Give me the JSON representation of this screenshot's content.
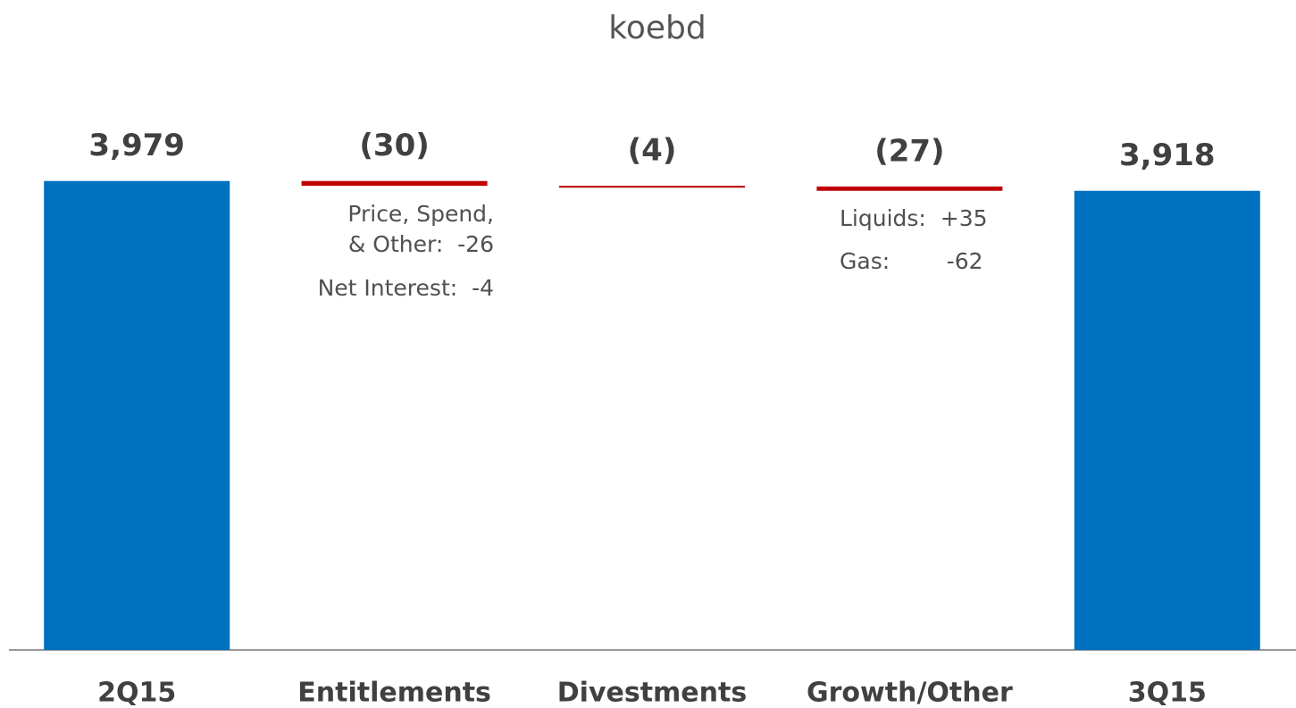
{
  "chart_data": {
    "type": "waterfall",
    "title": "koebd",
    "categories": [
      "2Q15",
      "Entitlements",
      "Divestments",
      "Growth/Other",
      "3Q15"
    ],
    "values": [
      3979,
      -30,
      -4,
      -27,
      3918
    ],
    "value_labels": [
      "3,979",
      "(30)",
      "(4)",
      "(27)",
      "3,918"
    ],
    "measure": [
      "total",
      "relative",
      "relative",
      "relative",
      "total"
    ],
    "colors": {
      "total": "#0070c0",
      "decrease": "#c00000"
    },
    "ylim": [
      1060,
      4500
    ],
    "annotations": [
      [
        "Price, Spend,",
        "& Other:  -26",
        "Net Interest:  -4"
      ],
      [
        "Liquids:  +35",
        "Gas:        -62"
      ]
    ]
  }
}
